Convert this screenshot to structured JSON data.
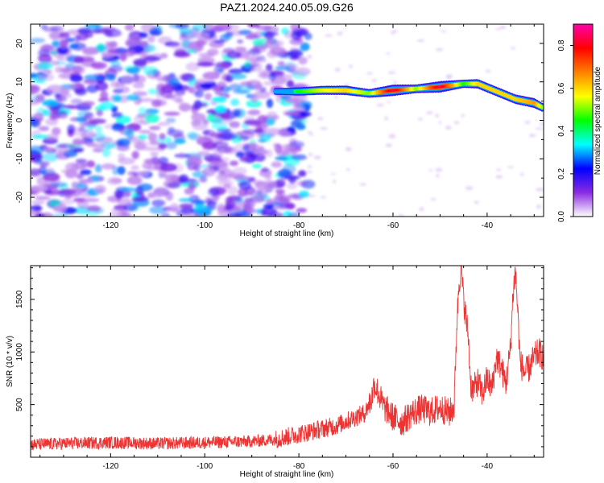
{
  "title": "PAZ1.2024.240.05.09.G26",
  "chart_data": [
    {
      "type": "heatmap",
      "xlabel": "Height of straight line (km)",
      "ylabel": "Frequency (Hz)",
      "xlim": [
        -137,
        -28
      ],
      "ylim": [
        -25,
        25
      ],
      "xticks": [
        -120,
        -100,
        -80,
        -60,
        -40
      ],
      "yticks": [
        -20,
        -10,
        0,
        10,
        20
      ],
      "colorbar": {
        "label": "Normalized spectral amplitude",
        "range": [
          0.0,
          0.9
        ],
        "ticks": [
          0.0,
          0.2,
          0.4,
          0.6,
          0.8
        ],
        "colormap": [
          "#ffffff",
          "#8a2be2",
          "#0000ff",
          "#00ffff",
          "#00ff00",
          "#ffff00",
          "#ff8000",
          "#ff0000",
          "#ff00aa"
        ]
      },
      "ridge": {
        "description_points": [
          {
            "x": -85,
            "y": 7.5,
            "amp": 0.25
          },
          {
            "x": -80,
            "y": 7.5,
            "amp": 0.45
          },
          {
            "x": -75,
            "y": 7.8,
            "amp": 0.55
          },
          {
            "x": -70,
            "y": 7.8,
            "amp": 0.6
          },
          {
            "x": -65,
            "y": 7.0,
            "amp": 0.5
          },
          {
            "x": -60,
            "y": 7.8,
            "amp": 0.85
          },
          {
            "x": -55,
            "y": 8.2,
            "amp": 0.5
          },
          {
            "x": -50,
            "y": 8.7,
            "amp": 0.85
          },
          {
            "x": -45,
            "y": 9.5,
            "amp": 0.45
          },
          {
            "x": -42,
            "y": 9.5,
            "amp": 0.6
          },
          {
            "x": -38,
            "y": 7.5,
            "amp": 0.6
          },
          {
            "x": -34,
            "y": 5.5,
            "amp": 0.6
          },
          {
            "x": -30,
            "y": 4.5,
            "amp": 0.65
          },
          {
            "x": -28,
            "y": 3.2,
            "amp": 0.5
          }
        ]
      },
      "noise_region_x": [
        -137,
        -78
      ]
    },
    {
      "type": "line",
      "xlabel": "Height of straight line (km)",
      "ylabel": "SNR (10 * v/v)",
      "xlim": [
        -137,
        -28
      ],
      "ylim": [
        0,
        1820
      ],
      "xticks": [
        -120,
        -100,
        -80,
        -60,
        -40
      ],
      "yticks": [
        500,
        1000,
        1500
      ],
      "series": [
        {
          "color": "#ee3333",
          "x": [
            -137,
            -130,
            -120,
            -110,
            -100,
            -90,
            -85,
            -80,
            -76,
            -72,
            -68,
            -66,
            -64.5,
            -64,
            -63,
            -62,
            -60,
            -58,
            -56,
            -54,
            -52,
            -50,
            -48,
            -47,
            -46.5,
            -46,
            -45.5,
            -45,
            -44,
            -43.5,
            -43,
            -42,
            -41,
            -40,
            -39,
            -38,
            -37,
            -36,
            -35,
            -34.5,
            -34,
            -33.5,
            -33,
            -32,
            -31,
            -30,
            -29,
            -28
          ],
          "values": [
            120,
            130,
            140,
            130,
            140,
            150,
            170,
            220,
            260,
            300,
            380,
            420,
            560,
            700,
            600,
            480,
            380,
            330,
            420,
            460,
            430,
            470,
            420,
            480,
            1200,
            1650,
            1800,
            1500,
            1150,
            700,
            640,
            720,
            600,
            750,
            650,
            950,
            850,
            700,
            1050,
            1550,
            1780,
            1400,
            900,
            800,
            850,
            950,
            1000,
            950
          ]
        }
      ]
    }
  ]
}
